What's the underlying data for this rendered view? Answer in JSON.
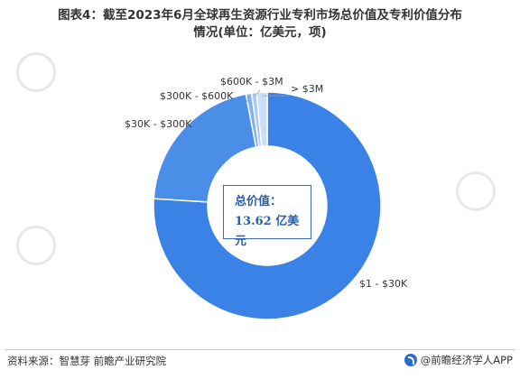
{
  "title_line1": "图表4：截至2023年6月全球再生资源行业专利市场总价值及专利价值分布",
  "title_line2": "情况(单位：亿美元，项)",
  "center_label": {
    "line1": "总价值：",
    "line2": "13.62 亿美元"
  },
  "footer": {
    "source": "资料来源：智慧芽 前瞻产业研究院",
    "brand": "@前瞻经济学人APP"
  },
  "watermark": "前瞻产业研究院",
  "colors": {
    "series": [
      "#3b82e6",
      "#4a8ee8",
      "#7fb0ef",
      "#a9c9f3",
      "#c9def8"
    ],
    "center_text": "#2a5ea8"
  },
  "chart_data": {
    "type": "pie",
    "categories": [
      "$1 - $30K",
      "$30K - $300K",
      "$300K - $600K",
      "$600K - $3M",
      "> $3M"
    ],
    "values": [
      76,
      21,
      0.8,
      0.7,
      1.5
    ],
    "unit": "项",
    "title": "图表4：截至2023年6月全球再生资源行业专利市场总价值及专利价值分布情况(单位：亿美元，项)",
    "legend": "none",
    "data_labels": [
      "$1 - $30K",
      "$30K - $300K",
      "$300K - $600K",
      "$600K - $3M",
      "> $3M"
    ]
  }
}
